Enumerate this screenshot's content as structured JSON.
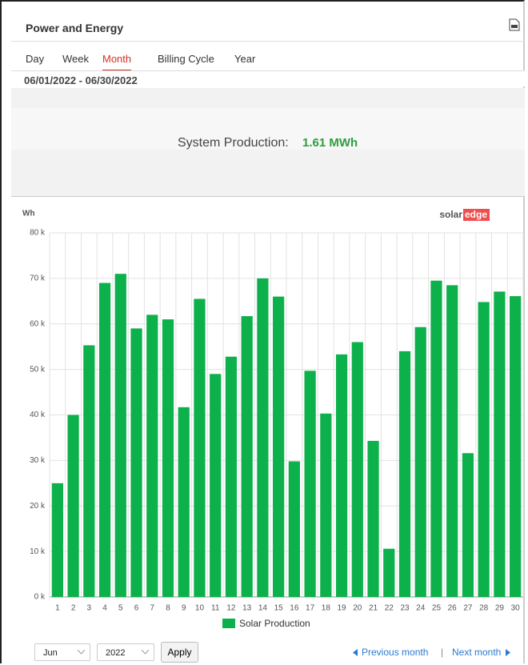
{
  "header": {
    "title": "Power and Energy"
  },
  "tabs": {
    "items": [
      "Day",
      "Week",
      "Month",
      "Billing Cycle",
      "Year"
    ],
    "active": 2
  },
  "date_range": "06/01/2022 - 06/30/2022",
  "production": {
    "label": "System Production:",
    "value": "1.61 MWh"
  },
  "logo": {
    "left": "solar",
    "right": "edge"
  },
  "chart_data": {
    "type": "bar",
    "y_label": "Wh",
    "categories": [
      "1",
      "2",
      "3",
      "4",
      "5",
      "6",
      "7",
      "8",
      "9",
      "10",
      "11",
      "12",
      "13",
      "14",
      "15",
      "16",
      "17",
      "18",
      "19",
      "20",
      "21",
      "22",
      "23",
      "24",
      "25",
      "26",
      "27",
      "28",
      "29",
      "30"
    ],
    "series": [
      {
        "name": "Solar Production",
        "color": "#0db14b",
        "values": [
          25000,
          40000,
          55300,
          69000,
          71000,
          59000,
          62000,
          61000,
          41700,
          65500,
          49000,
          52800,
          61700,
          70000,
          66000,
          29800,
          49700,
          40300,
          53300,
          56000,
          34300,
          10600,
          54000,
          59300,
          69500,
          68500,
          31600,
          64800,
          67100,
          66100
        ]
      }
    ],
    "ylim": [
      0,
      80000
    ],
    "yticks": [
      {
        "value": 0,
        "label": "0 k"
      },
      {
        "value": 10000,
        "label": "10 k"
      },
      {
        "value": 20000,
        "label": "20 k"
      },
      {
        "value": 30000,
        "label": "30 k"
      },
      {
        "value": 40000,
        "label": "40 k"
      },
      {
        "value": 50000,
        "label": "50 k"
      },
      {
        "value": 60000,
        "label": "60 k"
      },
      {
        "value": 70000,
        "label": "70 k"
      },
      {
        "value": 80000,
        "label": "80 k"
      }
    ],
    "grid": true
  },
  "controls": {
    "month": "Jun",
    "year": "2022",
    "apply": "Apply",
    "previous": "Previous month",
    "separator": "|",
    "next": "Next month"
  }
}
